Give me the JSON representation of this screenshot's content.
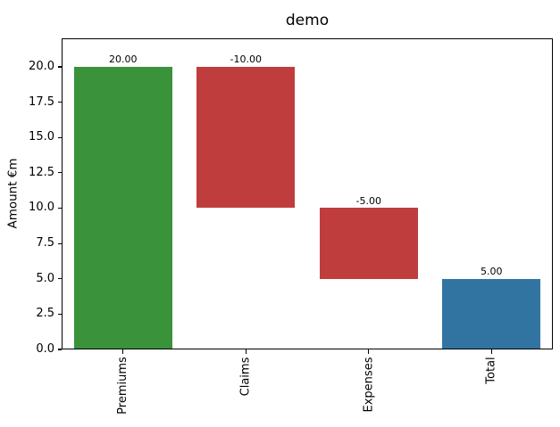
{
  "chart_data": {
    "type": "bar",
    "subtype": "waterfall",
    "title": "demo",
    "xlabel": "",
    "ylabel": "Amount €m",
    "categories": [
      "Premiums",
      "Claims",
      "Expenses",
      "Total"
    ],
    "bars": [
      {
        "label": "Premiums",
        "start": 0,
        "end": 20,
        "value": 20,
        "display": "20.00",
        "color": "#3a923a",
        "role": "increase"
      },
      {
        "label": "Claims",
        "start": 20,
        "end": 10,
        "value": -10,
        "display": "-10.00",
        "color": "#c03d3e",
        "role": "decrease"
      },
      {
        "label": "Expenses",
        "start": 10,
        "end": 5,
        "value": -5,
        "display": "-5.00",
        "color": "#c03d3e",
        "role": "decrease"
      },
      {
        "label": "Total",
        "start": 0,
        "end": 5,
        "value": 5,
        "display": "5.00",
        "color": "#3274a1",
        "role": "total"
      }
    ],
    "yticks": [
      0.0,
      2.5,
      5.0,
      7.5,
      10.0,
      12.5,
      15.0,
      17.5,
      20.0
    ],
    "ytick_labels": [
      "0.0",
      "2.5",
      "5.0",
      "7.5",
      "10.0",
      "12.5",
      "15.0",
      "17.5",
      "20.0"
    ],
    "ylim": [
      0,
      22.05
    ],
    "grid": false,
    "legend": null,
    "xtick_rotation": 90,
    "colors": {
      "increase": "#3a923a",
      "decrease": "#c03d3e",
      "total": "#3274a1",
      "text": "#000000",
      "background": "#ffffff"
    }
  }
}
